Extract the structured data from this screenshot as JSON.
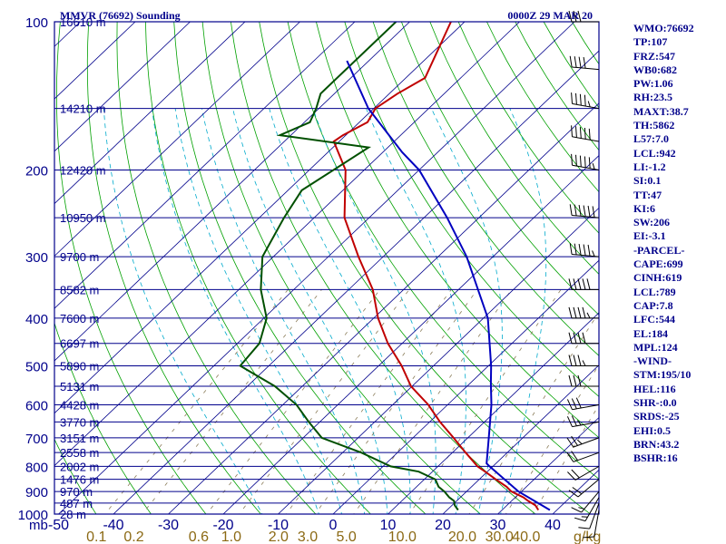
{
  "header": {
    "station": "MMVR (76692) Sounding",
    "time": "0000Z 29 MAR 20"
  },
  "colors": {
    "frame": "#00008b",
    "isobar": "#00008b",
    "isotherm": "#00008b",
    "dry_adiabat": "#00a000",
    "moist_adiabat": "#00aacc",
    "mixing_ratio": "#8b7d5a",
    "temperature": "#c00000",
    "dewpoint": "#005000",
    "parcel": "#0000c0",
    "wind_barb": "#000000",
    "mixing_ratio_label": "#8b6914"
  },
  "indices": [
    "WMO:76692",
    "TP:107",
    "FRZ:547",
    "WB0:682",
    "PW:1.06",
    "RH:23.5",
    "MAXT:38.7",
    "TH:5862",
    "L57:7.0",
    "LCL:942",
    "LI:-1.2",
    "SI:0.1",
    "TT:47",
    "KI:6",
    "SW:206",
    "EI:-3.1",
    "-PARCEL-",
    "CAPE:699",
    "CINH:619",
    "LCL:789",
    "CAP:7.8",
    "LFC:544",
    "EL:184",
    "MPL:124",
    "-WIND-",
    "STM:195/10",
    "HEL:116",
    "SHR-:0.0",
    "SRDS:-25",
    "EHI:0.5",
    "BRN:43.2",
    "BSHR:16"
  ],
  "chart_data": {
    "type": "line",
    "title": "MMVR (76692) Sounding",
    "subtitle": "0000Z 29 MAR 20",
    "xlabel": "",
    "ylabel": "mb",
    "x_units": "°C (skewed)",
    "y_scale": "log",
    "xlim": [
      -50,
      50
    ],
    "ylim": [
      1000,
      100
    ],
    "pressure_labels": [
      100,
      200,
      300,
      400,
      500,
      600,
      700,
      800,
      900,
      1000
    ],
    "temperature_ticks": [
      "-50",
      "-40",
      "-30",
      "-20",
      "-10",
      "0",
      "10",
      "20",
      "30",
      "40"
    ],
    "temperature_tick_values": [
      -50,
      -40,
      -30,
      -20,
      -10,
      0,
      10,
      20,
      30,
      40
    ],
    "mixing_ratio_labels": [
      "0.1",
      "0.2",
      "0.6",
      "1.0",
      "2.0",
      "3.0",
      "5.0",
      "10.0",
      "20.0",
      "30.0",
      "40.0"
    ],
    "mixing_ratio_values": [
      0.1,
      0.2,
      0.6,
      1.0,
      2.0,
      3.0,
      5.0,
      10.0,
      20.0,
      30.0,
      40.0
    ],
    "mixing_ratio_unit": "g/kg",
    "heights": [
      {
        "p": 100,
        "label": "16610 m"
      },
      {
        "p": 150,
        "label": "14210 m"
      },
      {
        "p": 200,
        "label": "12420 m"
      },
      {
        "p": 250,
        "label": "10950 m"
      },
      {
        "p": 300,
        "label": "9700 m"
      },
      {
        "p": 350,
        "label": "8582 m"
      },
      {
        "p": 400,
        "label": "7600 m"
      },
      {
        "p": 450,
        "label": "6697 m"
      },
      {
        "p": 500,
        "label": "5890 m"
      },
      {
        "p": 550,
        "label": "5131 m"
      },
      {
        "p": 600,
        "label": "4428 m"
      },
      {
        "p": 650,
        "label": "3770 m"
      },
      {
        "p": 700,
        "label": "3151 m"
      },
      {
        "p": 750,
        "label": "2558 m"
      },
      {
        "p": 800,
        "label": "2002 m"
      },
      {
        "p": 850,
        "label": "1476 m"
      },
      {
        "p": 900,
        "label": "970 m"
      },
      {
        "p": 950,
        "label": "487 m"
      },
      {
        "p": 1000,
        "label": "28 m"
      }
    ],
    "series": [
      {
        "name": "",
        "kind": "temperature",
        "p": [
          981,
          960,
          940,
          925,
          900,
          880,
          850,
          820,
          800,
          750,
          700,
          650,
          600,
          550,
          500,
          450,
          400,
          350,
          300,
          250,
          200,
          175,
          170,
          160,
          150,
          140,
          130,
          100
        ],
        "t": [
          36.6,
          35.2,
          33.0,
          31.5,
          28.2,
          26.4,
          23.0,
          19.6,
          17.2,
          12.4,
          7.4,
          1.9,
          -3.5,
          -10.2,
          -15.8,
          -22.6,
          -29.2,
          -35.6,
          -44.5,
          -54.5,
          -63.4,
          -71.0,
          -70.5,
          -68.5,
          -69.7,
          -68.5,
          -66.5,
          -72.5
        ]
      },
      {
        "name": "",
        "kind": "dewpoint",
        "p": [
          981,
          960,
          940,
          925,
          900,
          880,
          850,
          820,
          800,
          750,
          700,
          650,
          600,
          550,
          500,
          450,
          400,
          350,
          300,
          250,
          220,
          180,
          170,
          160,
          150,
          140,
          100
        ],
        "t": [
          22.0,
          20.5,
          19.5,
          18.0,
          16.0,
          14.0,
          12.0,
          7.5,
          1.4,
          -6.6,
          -16.6,
          -22.0,
          -27.5,
          -35.0,
          -45.2,
          -46.0,
          -49.5,
          -56.0,
          -62.0,
          -65.5,
          -67.5,
          -63.5,
          -82.0,
          -79.0,
          -80.5,
          -82.5,
          -82.5
        ]
      },
      {
        "name": "",
        "kind": "parcel",
        "p": [
          981,
          900,
          800,
          789,
          700,
          600,
          544,
          500,
          400,
          300,
          250,
          200,
          184,
          150,
          120
        ],
        "t": [
          38.7,
          29.5,
          19.4,
          18.3,
          13.8,
          8.0,
          3.9,
          0.5,
          -9.2,
          -24.8,
          -35.8,
          -50.0,
          -56.5,
          -71.0,
          -84.0
        ]
      }
    ],
    "wind": [
      {
        "p": 981,
        "dir": 190,
        "spd": 10
      },
      {
        "p": 950,
        "dir": 200,
        "spd": 10
      },
      {
        "p": 925,
        "dir": 210,
        "spd": 15
      },
      {
        "p": 900,
        "dir": 220,
        "spd": 15
      },
      {
        "p": 850,
        "dir": 230,
        "spd": 20
      },
      {
        "p": 800,
        "dir": 240,
        "spd": 20
      },
      {
        "p": 750,
        "dir": 250,
        "spd": 20
      },
      {
        "p": 700,
        "dir": 250,
        "spd": 25
      },
      {
        "p": 650,
        "dir": 260,
        "spd": 25
      },
      {
        "p": 600,
        "dir": 260,
        "spd": 30
      },
      {
        "p": 550,
        "dir": 270,
        "spd": 30
      },
      {
        "p": 500,
        "dir": 270,
        "spd": 35
      },
      {
        "p": 450,
        "dir": 270,
        "spd": 40
      },
      {
        "p": 400,
        "dir": 270,
        "spd": 45
      },
      {
        "p": 350,
        "dir": 270,
        "spd": 50
      },
      {
        "p": 300,
        "dir": 275,
        "spd": 55
      },
      {
        "p": 250,
        "dir": 275,
        "spd": 60
      },
      {
        "p": 200,
        "dir": 280,
        "spd": 55
      },
      {
        "p": 175,
        "dir": 280,
        "spd": 50
      },
      {
        "p": 150,
        "dir": 280,
        "spd": 45
      },
      {
        "p": 125,
        "dir": 275,
        "spd": 40
      },
      {
        "p": 100,
        "dir": 270,
        "spd": 30
      }
    ]
  }
}
